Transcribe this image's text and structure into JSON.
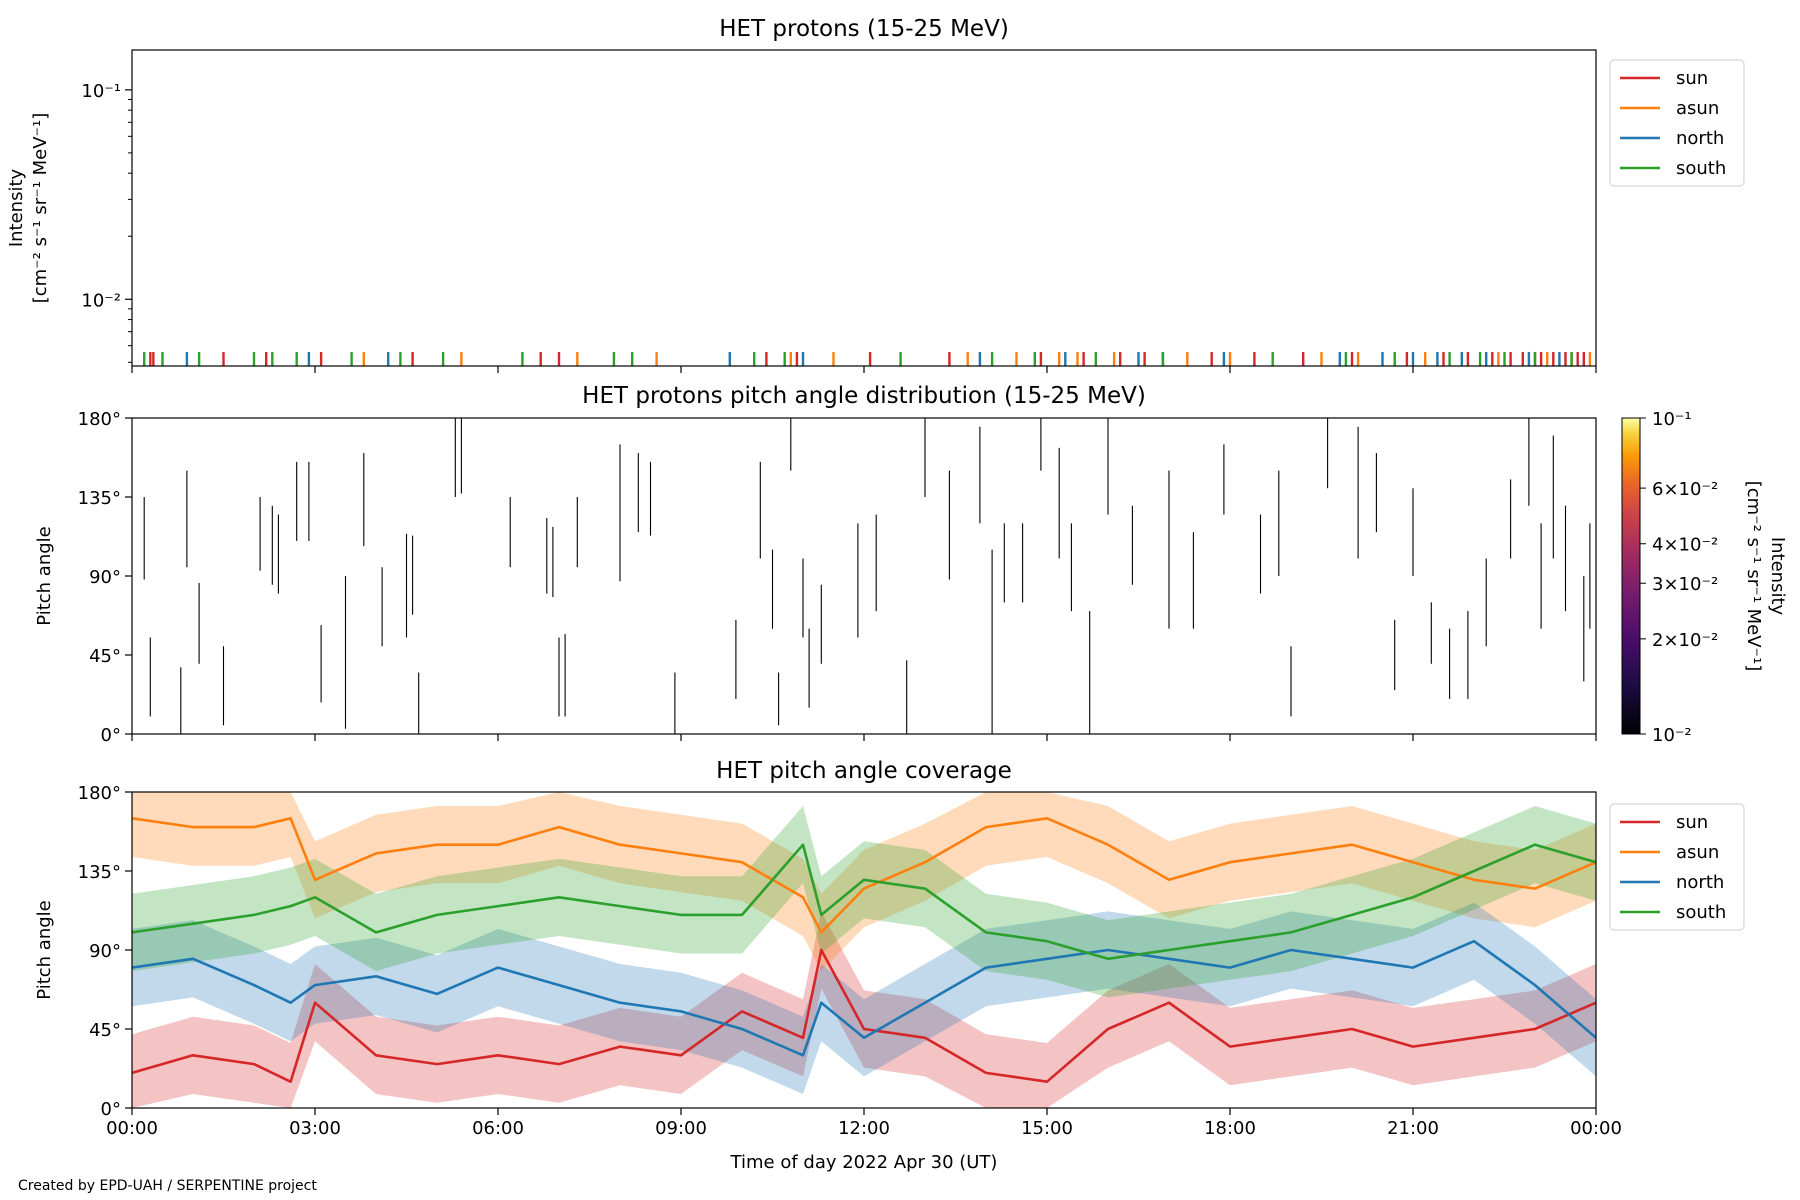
{
  "footer": {
    "credit": "Created by EPD-UAH / SERPENTINE project"
  },
  "colors": {
    "sun": "#d62728",
    "asun": "#ff7f0e",
    "north": "#1f77b4",
    "south": "#2ca02c"
  },
  "chart_data": [
    {
      "type": "line",
      "title": "HET protons (15-25 MeV)",
      "ylabel_line1": "Intensity",
      "ylabel_line2": "[cm⁻² s⁻¹ sr⁻¹ MeV⁻¹]",
      "yscale": "log",
      "ylim": [
        0.0048,
        0.155
      ],
      "yticks": [
        {
          "v": 0.01,
          "label": "10⁻²"
        },
        {
          "v": 0.1,
          "label": "10⁻¹"
        }
      ],
      "xlim": [
        0,
        24
      ],
      "legend": {
        "position": "outside-right-top",
        "entries": [
          "sun",
          "asun",
          "north",
          "south"
        ]
      },
      "sporadic_value": 0.0056,
      "series": [
        {
          "name": "sun",
          "color": "#d62728",
          "x": [
            0.3,
            0.35,
            1.5,
            2.2,
            3.1,
            4.6,
            6.7,
            7.0,
            10.4,
            10.9,
            12.1,
            13.4,
            14.9,
            15.6,
            16.2,
            16.6,
            17.7,
            18.4,
            19.2,
            20.0,
            20.9,
            21.5,
            21.9,
            22.3,
            22.6,
            22.8,
            23.0,
            23.1,
            23.3,
            23.5,
            23.7,
            23.8
          ]
        },
        {
          "name": "asun",
          "color": "#ff7f0e",
          "x": [
            3.8,
            5.4,
            7.3,
            8.6,
            10.8,
            11.5,
            13.7,
            14.5,
            15.2,
            15.5,
            16.1,
            17.3,
            18.0,
            19.5,
            20.1,
            21.2,
            22.4,
            23.2,
            23.6,
            23.9
          ]
        },
        {
          "name": "north",
          "color": "#1f77b4",
          "x": [
            0.9,
            2.9,
            4.2,
            9.8,
            11.0,
            13.9,
            15.3,
            16.5,
            16.9,
            17.9,
            19.8,
            20.5,
            21.0,
            21.4,
            21.8,
            22.2,
            22.9,
            23.4
          ]
        },
        {
          "name": "south",
          "color": "#2ca02c",
          "x": [
            0.2,
            0.5,
            1.1,
            2.0,
            2.3,
            2.7,
            3.6,
            4.4,
            5.1,
            6.4,
            7.9,
            8.2,
            10.2,
            10.7,
            12.6,
            14.1,
            14.8,
            15.8,
            16.9,
            18.7,
            19.9,
            20.7,
            21.6,
            22.1,
            22.5,
            23.0,
            23.6
          ]
        }
      ]
    },
    {
      "type": "heatmap",
      "title": "HET protons pitch angle distribution (15-25 MeV)",
      "ylabel": "Pitch angle",
      "ylim": [
        0,
        180
      ],
      "yticks": [
        {
          "v": 0,
          "label": "0°"
        },
        {
          "v": 45,
          "label": "45°"
        },
        {
          "v": 90,
          "label": "90°"
        },
        {
          "v": 135,
          "label": "135°"
        },
        {
          "v": 180,
          "label": "180°"
        }
      ],
      "xlim": [
        0,
        24
      ],
      "colorbar": {
        "label": "Intensity",
        "label_line2": "[cm⁻² s⁻¹ sr⁻¹ MeV⁻¹]",
        "scale": "log",
        "range": [
          0.01,
          0.1
        ],
        "ticks": [
          {
            "v": 0.01,
            "label": "10⁻²"
          },
          {
            "v": 0.02,
            "label": "2×10⁻²"
          },
          {
            "v": 0.03,
            "label": "3×10⁻²"
          },
          {
            "v": 0.04,
            "label": "4×10⁻²"
          },
          {
            "v": 0.06,
            "label": "6×10⁻²"
          },
          {
            "v": 0.1,
            "label": "10⁻¹"
          }
        ],
        "cmap": "inferno"
      },
      "segments": [
        [
          0.2,
          88,
          135
        ],
        [
          0.3,
          10,
          55
        ],
        [
          0.8,
          0,
          38
        ],
        [
          0.9,
          95,
          150
        ],
        [
          1.1,
          40,
          86
        ],
        [
          1.5,
          5,
          50
        ],
        [
          2.1,
          93,
          135
        ],
        [
          2.3,
          85,
          130
        ],
        [
          2.4,
          80,
          125
        ],
        [
          2.7,
          110,
          155
        ],
        [
          2.9,
          110,
          155
        ],
        [
          3.1,
          18,
          62
        ],
        [
          3.8,
          107,
          160
        ],
        [
          3.5,
          3,
          90
        ],
        [
          4.1,
          50,
          95
        ],
        [
          4.5,
          55,
          114
        ],
        [
          4.6,
          68,
          113
        ],
        [
          4.7,
          0,
          35
        ],
        [
          5.4,
          137,
          180
        ],
        [
          5.3,
          135,
          180
        ],
        [
          6.2,
          95,
          135
        ],
        [
          6.8,
          80,
          123
        ],
        [
          6.9,
          78,
          118
        ],
        [
          7.3,
          95,
          135
        ],
        [
          7.0,
          10,
          55
        ],
        [
          7.1,
          10,
          57
        ],
        [
          8.0,
          87,
          165
        ],
        [
          8.3,
          115,
          160
        ],
        [
          8.5,
          113,
          155
        ],
        [
          8.9,
          0,
          35
        ],
        [
          9.9,
          20,
          65
        ],
        [
          10.3,
          100,
          155
        ],
        [
          10.5,
          60,
          105
        ],
        [
          10.6,
          5,
          35
        ],
        [
          10.8,
          150,
          180
        ],
        [
          11.0,
          55,
          100
        ],
        [
          11.1,
          15,
          60
        ],
        [
          11.3,
          40,
          85
        ],
        [
          11.9,
          55,
          120
        ],
        [
          12.2,
          70,
          125
        ],
        [
          12.7,
          0,
          42
        ],
        [
          13.0,
          135,
          180
        ],
        [
          13.4,
          88,
          150
        ],
        [
          13.9,
          120,
          175
        ],
        [
          14.1,
          0,
          105
        ],
        [
          14.3,
          75,
          120
        ],
        [
          14.6,
          75,
          120
        ],
        [
          14.9,
          150,
          180
        ],
        [
          15.2,
          100,
          163
        ],
        [
          15.4,
          70,
          120
        ],
        [
          15.7,
          0,
          70
        ],
        [
          16.0,
          125,
          180
        ],
        [
          16.4,
          85,
          130
        ],
        [
          17.0,
          60,
          150
        ],
        [
          17.4,
          60,
          115
        ],
        [
          17.9,
          125,
          165
        ],
        [
          18.5,
          80,
          125
        ],
        [
          18.8,
          90,
          150
        ],
        [
          19.0,
          10,
          50
        ],
        [
          19.6,
          140,
          180
        ],
        [
          20.1,
          100,
          175
        ],
        [
          20.4,
          115,
          160
        ],
        [
          20.7,
          25,
          65
        ],
        [
          21.0,
          90,
          140
        ],
        [
          21.3,
          40,
          75
        ],
        [
          21.6,
          20,
          60
        ],
        [
          21.9,
          20,
          70
        ],
        [
          22.2,
          50,
          100
        ],
        [
          22.6,
          100,
          145
        ],
        [
          22.9,
          130,
          180
        ],
        [
          23.1,
          60,
          120
        ],
        [
          23.3,
          100,
          170
        ],
        [
          23.5,
          70,
          130
        ],
        [
          23.8,
          30,
          90
        ],
        [
          23.9,
          60,
          120
        ]
      ]
    },
    {
      "type": "area",
      "title": "HET pitch angle coverage",
      "ylabel": "Pitch angle",
      "xlabel": "Time of day 2022 Apr 30 (UT)",
      "ylim": [
        0,
        180
      ],
      "yticks": [
        {
          "v": 0,
          "label": "0°"
        },
        {
          "v": 45,
          "label": "45°"
        },
        {
          "v": 90,
          "label": "90°"
        },
        {
          "v": 135,
          "label": "135°"
        },
        {
          "v": 180,
          "label": "180°"
        }
      ],
      "xlim": [
        0,
        24
      ],
      "xticks": [
        {
          "v": 0,
          "label": "00:00"
        },
        {
          "v": 3,
          "label": "03:00"
        },
        {
          "v": 6,
          "label": "06:00"
        },
        {
          "v": 9,
          "label": "09:00"
        },
        {
          "v": 12,
          "label": "12:00"
        },
        {
          "v": 15,
          "label": "15:00"
        },
        {
          "v": 18,
          "label": "18:00"
        },
        {
          "v": 21,
          "label": "21:00"
        },
        {
          "v": 24,
          "label": "00:00"
        }
      ],
      "legend": {
        "position": "outside-right-top",
        "entries": [
          "sun",
          "asun",
          "north",
          "south"
        ]
      },
      "band_halfwidth": 22,
      "series": [
        {
          "name": "sun",
          "color": "#d62728",
          "x": [
            0,
            1,
            2,
            2.6,
            3,
            4,
            5,
            6,
            7,
            8,
            9,
            10,
            11,
            11.3,
            12,
            13,
            14,
            15,
            16,
            17,
            18,
            19,
            20,
            21,
            22,
            23,
            24
          ],
          "y": [
            20,
            30,
            25,
            15,
            60,
            30,
            25,
            30,
            25,
            35,
            30,
            55,
            40,
            90,
            45,
            40,
            20,
            15,
            45,
            60,
            35,
            40,
            45,
            35,
            40,
            45,
            60
          ]
        },
        {
          "name": "asun",
          "color": "#ff7f0e",
          "x": [
            0,
            1,
            2,
            2.6,
            3,
            4,
            5,
            6,
            7,
            8,
            9,
            10,
            11,
            11.3,
            12,
            13,
            14,
            15,
            16,
            17,
            18,
            19,
            20,
            21,
            22,
            23,
            24
          ],
          "y": [
            165,
            160,
            160,
            165,
            130,
            145,
            150,
            150,
            160,
            150,
            145,
            140,
            120,
            100,
            125,
            140,
            160,
            165,
            150,
            130,
            140,
            145,
            150,
            140,
            130,
            125,
            140
          ]
        },
        {
          "name": "north",
          "color": "#1f77b4",
          "x": [
            0,
            1,
            2,
            2.6,
            3,
            4,
            5,
            6,
            7,
            8,
            9,
            10,
            11,
            11.3,
            12,
            13,
            14,
            15,
            16,
            17,
            18,
            19,
            20,
            21,
            22,
            23,
            24
          ],
          "y": [
            80,
            85,
            70,
            60,
            70,
            75,
            65,
            80,
            70,
            60,
            55,
            45,
            30,
            60,
            40,
            60,
            80,
            85,
            90,
            85,
            80,
            90,
            85,
            80,
            95,
            70,
            40
          ]
        },
        {
          "name": "south",
          "color": "#2ca02c",
          "x": [
            0,
            1,
            2,
            2.6,
            3,
            4,
            5,
            6,
            7,
            8,
            9,
            10,
            11,
            11.3,
            12,
            13,
            14,
            15,
            16,
            17,
            18,
            19,
            20,
            21,
            22,
            23,
            24
          ],
          "y": [
            100,
            105,
            110,
            115,
            120,
            100,
            110,
            115,
            120,
            115,
            110,
            110,
            150,
            110,
            130,
            125,
            100,
            95,
            85,
            90,
            95,
            100,
            110,
            120,
            135,
            150,
            140
          ]
        }
      ]
    }
  ]
}
